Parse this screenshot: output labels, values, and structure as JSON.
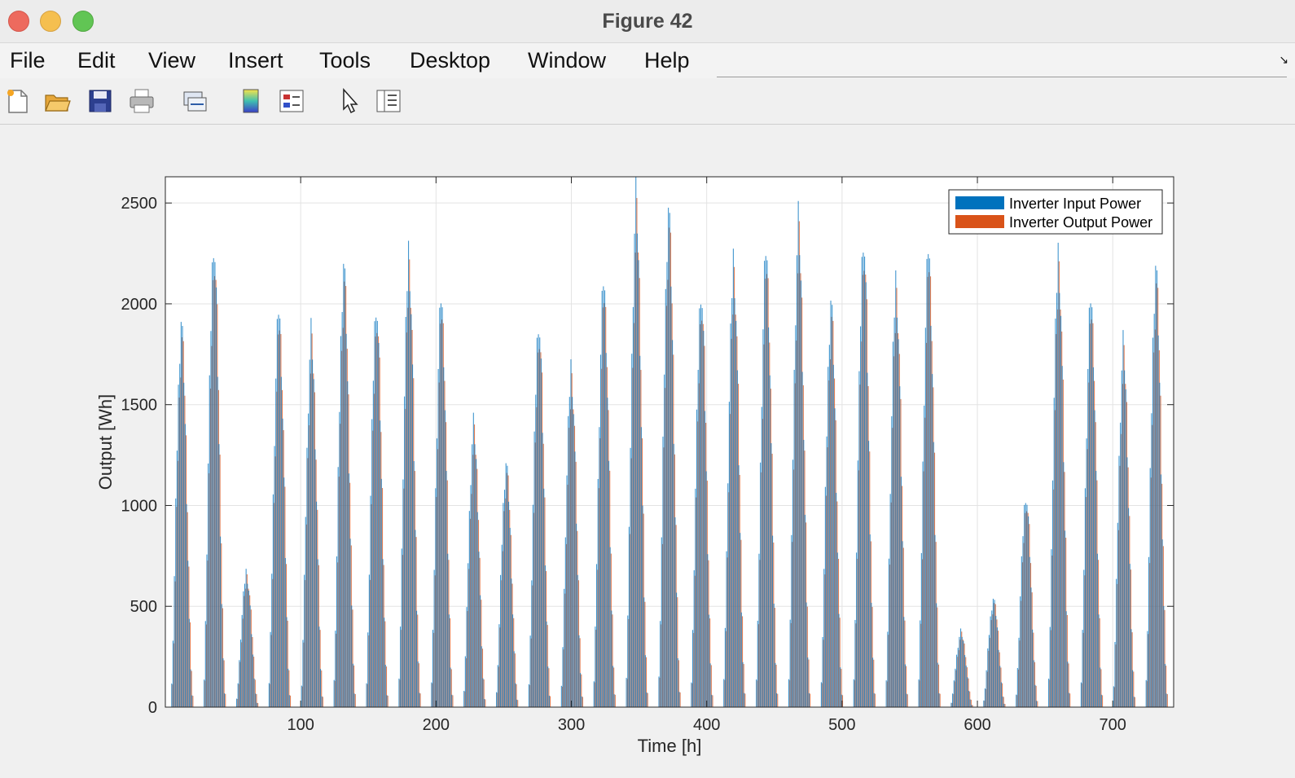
{
  "window": {
    "title": "Figure 42",
    "controls": [
      "close",
      "minimize",
      "maximize"
    ]
  },
  "menu": {
    "items": [
      "File",
      "Edit",
      "View",
      "Insert",
      "Tools",
      "Desktop",
      "Window",
      "Help"
    ]
  },
  "toolbar": {
    "buttons": [
      "new-figure-icon",
      "open-file-icon",
      "save-icon",
      "print-icon",
      "link-icon",
      "colorbar-icon",
      "legend-icon",
      "pointer-icon",
      "property-inspector-icon"
    ]
  },
  "chart_data": {
    "type": "bar",
    "xlabel": "Time [h]",
    "ylabel": "Output [Wh]",
    "xlim": [
      0,
      745
    ],
    "ylim": [
      0,
      2630
    ],
    "xticks": [
      100,
      200,
      300,
      400,
      500,
      600,
      700
    ],
    "yticks": [
      0,
      500,
      1000,
      1500,
      2000,
      2500
    ],
    "grid": true,
    "legend_position": "top-right",
    "series": [
      {
        "name": "Inverter Input Power",
        "color": "#0072bd"
      },
      {
        "name": "Inverter Output Power",
        "color": "#d95319"
      }
    ],
    "daily_peaks": [
      {
        "day": 1,
        "peak_hour": 12.5,
        "input_peak": 1990
      },
      {
        "day": 2,
        "peak_hour": 36.5,
        "input_peak": 2420
      },
      {
        "day": 3,
        "peak_hour": 60.5,
        "input_peak": 700
      },
      {
        "day": 4,
        "peak_hour": 84.5,
        "input_peak": 2070
      },
      {
        "day": 5,
        "peak_hour": 108.5,
        "input_peak": 1930
      },
      {
        "day": 6,
        "peak_hour": 132.5,
        "input_peak": 2290
      },
      {
        "day": 7,
        "peak_hour": 156.5,
        "input_peak": 2100
      },
      {
        "day": 8,
        "peak_hour": 180.5,
        "input_peak": 2360
      },
      {
        "day": 9,
        "peak_hour": 204.5,
        "input_peak": 2130
      },
      {
        "day": 10,
        "peak_hour": 228.5,
        "input_peak": 1460
      },
      {
        "day": 11,
        "peak_hour": 252.5,
        "input_peak": 1260
      },
      {
        "day": 12,
        "peak_hour": 276.5,
        "input_peak": 2010
      },
      {
        "day": 13,
        "peak_hour": 300.5,
        "input_peak": 1760
      },
      {
        "day": 14,
        "peak_hour": 324.5,
        "input_peak": 2220
      },
      {
        "day": 15,
        "peak_hour": 348.5,
        "input_peak": 2630
      },
      {
        "day": 16,
        "peak_hour": 372.5,
        "input_peak": 2580
      },
      {
        "day": 17,
        "peak_hour": 396.5,
        "input_peak": 2170
      },
      {
        "day": 18,
        "peak_hour": 420.5,
        "input_peak": 2320
      },
      {
        "day": 19,
        "peak_hour": 444.5,
        "input_peak": 2380
      },
      {
        "day": 20,
        "peak_hour": 468.5,
        "input_peak": 2510
      },
      {
        "day": 21,
        "peak_hour": 492.5,
        "input_peak": 2100
      },
      {
        "day": 22,
        "peak_hour": 516.5,
        "input_peak": 2450
      },
      {
        "day": 23,
        "peak_hour": 540.5,
        "input_peak": 2210
      },
      {
        "day": 24,
        "peak_hour": 564.5,
        "input_peak": 2390
      },
      {
        "day": 25,
        "peak_hour": 588.5,
        "input_peak": 390
      },
      {
        "day": 26,
        "peak_hour": 612.5,
        "input_peak": 560
      },
      {
        "day": 27,
        "peak_hour": 636.5,
        "input_peak": 1100
      },
      {
        "day": 28,
        "peak_hour": 660.5,
        "input_peak": 2350
      },
      {
        "day": 29,
        "peak_hour": 684.5,
        "input_peak": 2130
      },
      {
        "day": 30,
        "peak_hour": 708.5,
        "input_peak": 1870
      },
      {
        "day": 31,
        "peak_hour": 732.5,
        "input_peak": 2280
      }
    ],
    "output_to_input_ratio": 0.96
  }
}
